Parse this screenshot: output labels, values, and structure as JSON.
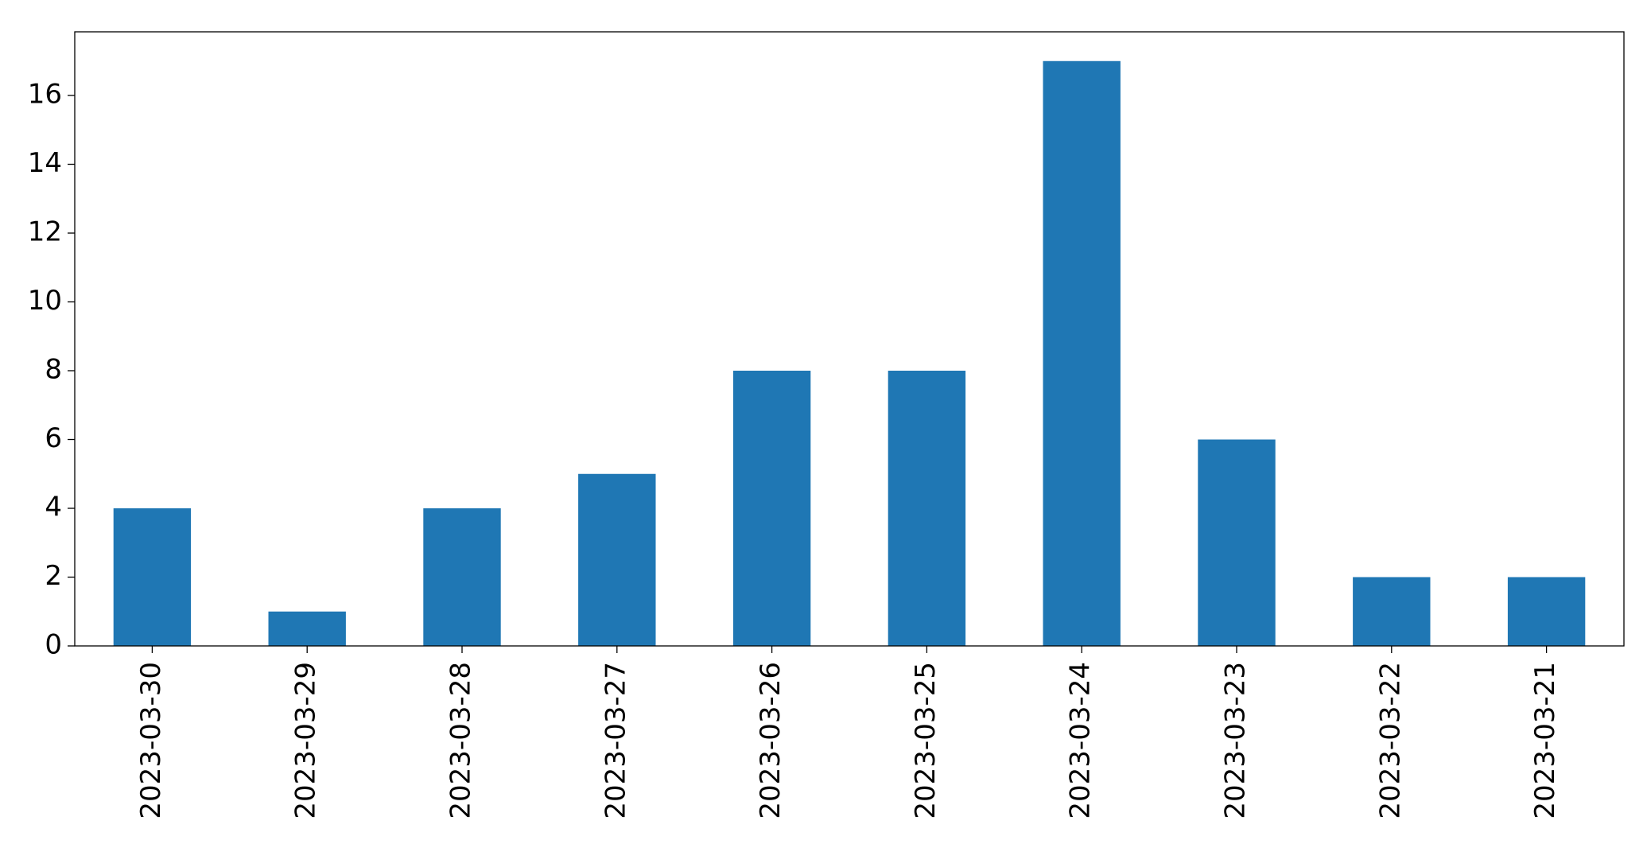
{
  "chart_data": {
    "type": "bar",
    "categories": [
      "2023-03-30",
      "2023-03-29",
      "2023-03-28",
      "2023-03-27",
      "2023-03-26",
      "2023-03-25",
      "2023-03-24",
      "2023-03-23",
      "2023-03-22",
      "2023-03-21"
    ],
    "values": [
      4,
      1,
      4,
      5,
      8,
      8,
      17,
      6,
      2,
      2
    ],
    "color": "#1f77b4",
    "ylim": [
      0,
      17.85
    ],
    "yticks": [
      0,
      2,
      4,
      6,
      8,
      10,
      12,
      14,
      16
    ],
    "grid": false
  }
}
